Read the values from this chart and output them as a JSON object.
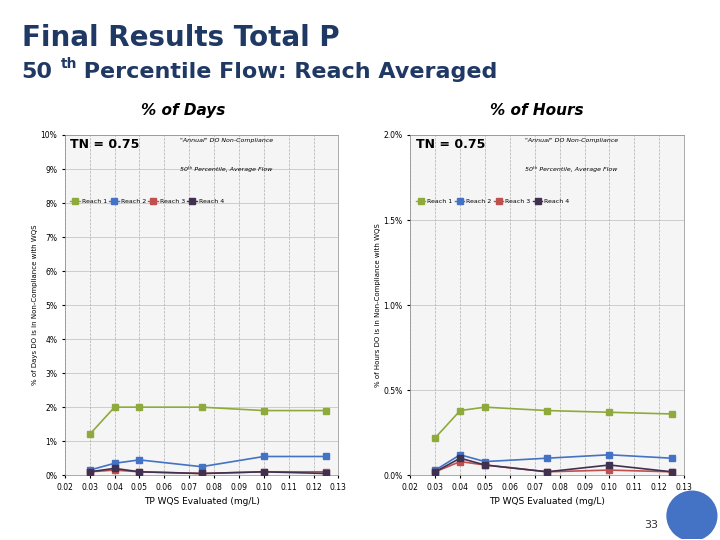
{
  "title_line1": "Final Results Total P",
  "title_line2": "50ᵗʰ Percentile Flow: Reach Averaged",
  "title_color": "#1F3864",
  "background_color": "#ffffff",
  "panel_left_title": "% of Days",
  "panel_right_title": "% of Hours",
  "tn_label": "TN = 0.75",
  "chart_subtitle1": "\"Annual\" DO Non-Compliance",
  "chart_subtitle2": "50ᵗʰ Percentile, Average Flow",
  "xlabel": "TP WQS Evaluated (mg/L)",
  "ylabel_days": "% of Days DO is in Non-Compliance with WQS",
  "ylabel_hours": "% of Hours DO is in Non-Compliance with WQS",
  "x_values": [
    0.03,
    0.04,
    0.05,
    0.075,
    0.1,
    0.125
  ],
  "x_ticks": [
    0.02,
    0.03,
    0.04,
    0.05,
    0.06,
    0.07,
    0.08,
    0.09,
    0.1,
    0.11,
    0.12,
    0.13
  ],
  "x_tick_labels": [
    "0.02",
    "0.03",
    "0.04",
    "0.05",
    "0.06",
    "0.07",
    "0.08",
    "0.09",
    "0.10",
    "0.11",
    "0.12",
    "0.13"
  ],
  "reach1_color": "#8faa3c",
  "reach2_color": "#4472c4",
  "reach3_color": "#c0504d",
  "reach4_color": "#403151",
  "days_reach1": [
    0.012,
    0.02,
    0.02,
    0.02,
    0.019,
    0.019
  ],
  "days_reach2": [
    0.0015,
    0.0035,
    0.0045,
    0.0025,
    0.0055,
    0.0055
  ],
  "days_reach3": [
    0.001,
    0.0015,
    0.001,
    0.0005,
    0.001,
    0.001
  ],
  "days_reach4": [
    0.001,
    0.002,
    0.001,
    0.0005,
    0.001,
    0.0005
  ],
  "days_ylim": [
    0,
    0.1
  ],
  "days_yticks": [
    0.0,
    0.01,
    0.02,
    0.03,
    0.04,
    0.05,
    0.06,
    0.07,
    0.08,
    0.09,
    0.1
  ],
  "days_ytick_labels": [
    "0%",
    "1%",
    "2%",
    "3%",
    "4%",
    "5%",
    "6%",
    "7%",
    "8%",
    "9%",
    "10%"
  ],
  "hours_reach1": [
    0.0022,
    0.0038,
    0.004,
    0.0038,
    0.0037,
    0.0036
  ],
  "hours_reach2": [
    0.0003,
    0.0012,
    0.0008,
    0.001,
    0.0012,
    0.001
  ],
  "hours_reach3": [
    0.0002,
    0.0008,
    0.0006,
    0.0002,
    0.0003,
    0.0002
  ],
  "hours_reach4": [
    0.0002,
    0.001,
    0.0006,
    0.0002,
    0.0006,
    0.0002
  ],
  "hours_ylim": [
    0,
    0.02
  ],
  "hours_yticks": [
    0.0,
    0.005,
    0.01,
    0.015,
    0.02
  ],
  "hours_ytick_labels": [
    "0.0%",
    "0.5%",
    "1.0%",
    "1.5%",
    "2.0%"
  ],
  "legend_labels": [
    "Reach 1",
    "Reach 2",
    "Reach 3",
    "Reach 4"
  ],
  "page_number": "33",
  "bottom_bar_color": "#4472c4",
  "marker_size": 5,
  "linewidth": 1.2
}
